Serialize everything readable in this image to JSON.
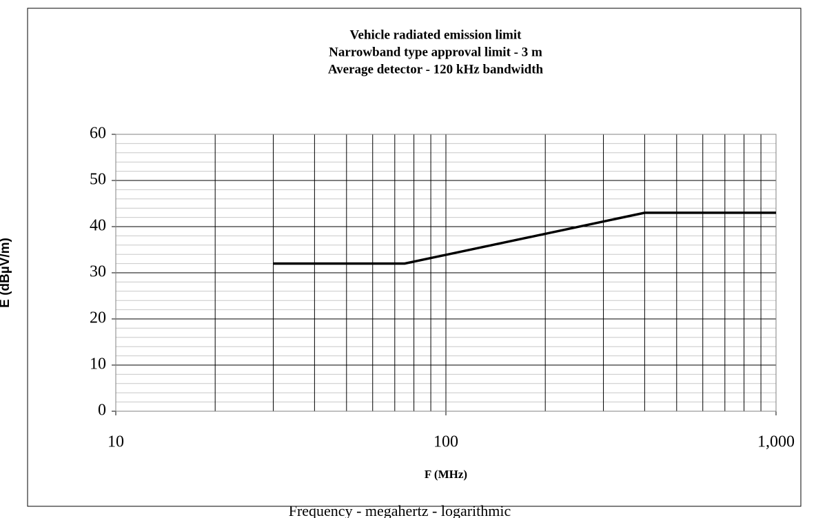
{
  "chart_data": {
    "type": "line",
    "title": [
      "Vehicle radiated emission limit",
      "Narrowband type approval limit - 3 m",
      "Average detector - 120 kHz bandwidth"
    ],
    "xlabel": "F (MHz)",
    "ylabel": "E (dBµV/m)",
    "caption": "Frequency - megahertz - logarithmic",
    "xscale": "log",
    "x": [
      30,
      75,
      400,
      1000
    ],
    "series": [
      {
        "name": null,
        "color": "#000000",
        "values": [
          32,
          32,
          43,
          43
        ]
      }
    ],
    "xlim": [
      10,
      1000
    ],
    "xticks": [
      10,
      100,
      {
        "value": 1000,
        "label": "1,000"
      }
    ],
    "ylim": [
      0,
      60
    ],
    "yticks": [
      0,
      10,
      20,
      30,
      40,
      50,
      60
    ],
    "grid": true,
    "minor_grid": true
  }
}
